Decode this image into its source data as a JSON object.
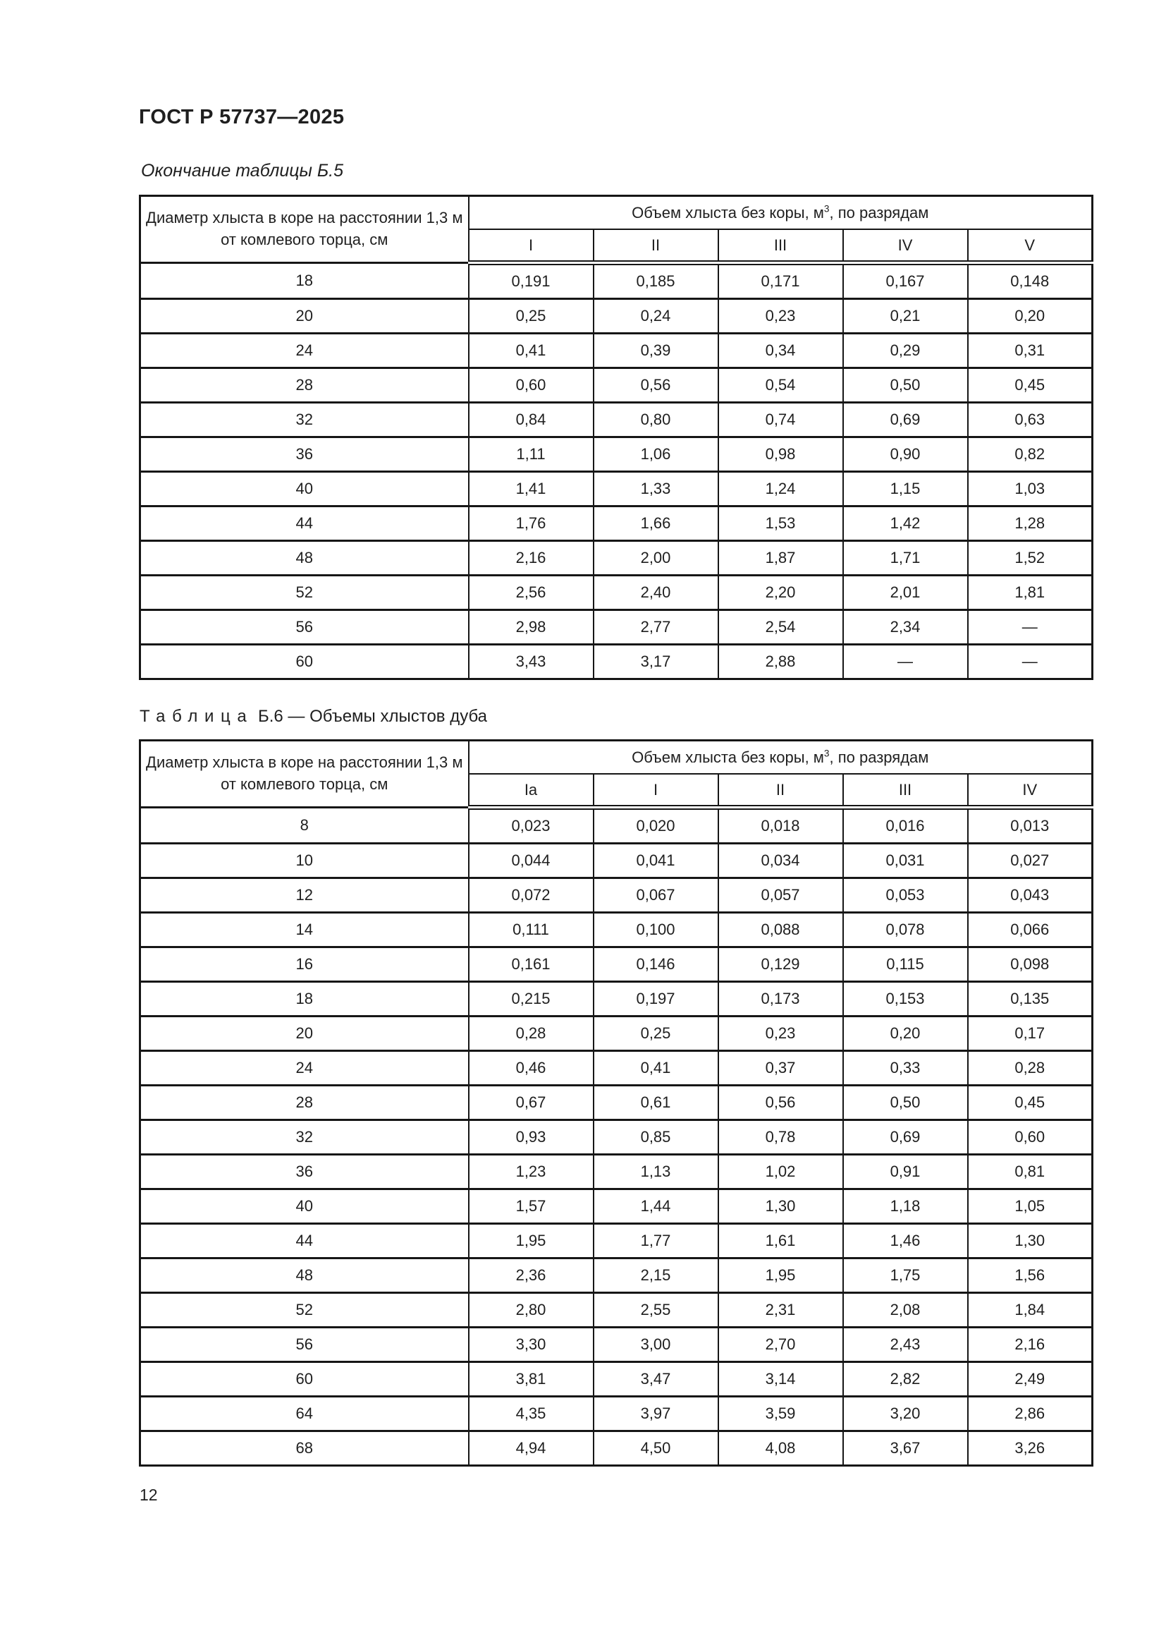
{
  "page": {
    "header_title": "ГОСТ Р 57737—2025",
    "page_number": "12"
  },
  "table_b5": {
    "caption": "Окончание таблицы Б.5",
    "diameter_header": "Диаметр хлыста в коре на расстоянии 1,3 м от комлевого торца, см",
    "volume_header": {
      "prefix": "Объем хлыста без коры, м",
      "sup": "3",
      "suffix": ", по разрядам"
    },
    "grades": [
      "I",
      "II",
      "III",
      "IV",
      "V"
    ],
    "rows": [
      [
        "18",
        "0,191",
        "0,185",
        "0,171",
        "0,167",
        "0,148"
      ],
      [
        "20",
        "0,25",
        "0,24",
        "0,23",
        "0,21",
        "0,20"
      ],
      [
        "24",
        "0,41",
        "0,39",
        "0,34",
        "0,29",
        "0,31"
      ],
      [
        "28",
        "0,60",
        "0,56",
        "0,54",
        "0,50",
        "0,45"
      ],
      [
        "32",
        "0,84",
        "0,80",
        "0,74",
        "0,69",
        "0,63"
      ],
      [
        "36",
        "1,11",
        "1,06",
        "0,98",
        "0,90",
        "0,82"
      ],
      [
        "40",
        "1,41",
        "1,33",
        "1,24",
        "1,15",
        "1,03"
      ],
      [
        "44",
        "1,76",
        "1,66",
        "1,53",
        "1,42",
        "1,28"
      ],
      [
        "48",
        "2,16",
        "2,00",
        "1,87",
        "1,71",
        "1,52"
      ],
      [
        "52",
        "2,56",
        "2,40",
        "2,20",
        "2,01",
        "1,81"
      ],
      [
        "56",
        "2,98",
        "2,77",
        "2,54",
        "2,34",
        "—"
      ],
      [
        "60",
        "3,43",
        "3,17",
        "2,88",
        "—",
        "—"
      ]
    ]
  },
  "table_b6": {
    "caption_label": "Таблица",
    "caption_rest": " Б.6 — Объемы хлыстов дуба",
    "diameter_header": "Диаметр хлыста в коре на расстоянии 1,3 м от комлевого торца, см",
    "volume_header": {
      "prefix": "Объем хлыста без коры, м",
      "sup": "3",
      "suffix": ", по разрядам"
    },
    "grades": [
      "Iа",
      "I",
      "II",
      "III",
      "IV"
    ],
    "rows": [
      [
        "8",
        "0,023",
        "0,020",
        "0,018",
        "0,016",
        "0,013"
      ],
      [
        "10",
        "0,044",
        "0,041",
        "0,034",
        "0,031",
        "0,027"
      ],
      [
        "12",
        "0,072",
        "0,067",
        "0,057",
        "0,053",
        "0,043"
      ],
      [
        "14",
        "0,111",
        "0,100",
        "0,088",
        "0,078",
        "0,066"
      ],
      [
        "16",
        "0,161",
        "0,146",
        "0,129",
        "0,115",
        "0,098"
      ],
      [
        "18",
        "0,215",
        "0,197",
        "0,173",
        "0,153",
        "0,135"
      ],
      [
        "20",
        "0,28",
        "0,25",
        "0,23",
        "0,20",
        "0,17"
      ],
      [
        "24",
        "0,46",
        "0,41",
        "0,37",
        "0,33",
        "0,28"
      ],
      [
        "28",
        "0,67",
        "0,61",
        "0,56",
        "0,50",
        "0,45"
      ],
      [
        "32",
        "0,93",
        "0,85",
        "0,78",
        "0,69",
        "0,60"
      ],
      [
        "36",
        "1,23",
        "1,13",
        "1,02",
        "0,91",
        "0,81"
      ],
      [
        "40",
        "1,57",
        "1,44",
        "1,30",
        "1,18",
        "1,05"
      ],
      [
        "44",
        "1,95",
        "1,77",
        "1,61",
        "1,46",
        "1,30"
      ],
      [
        "48",
        "2,36",
        "2,15",
        "1,95",
        "1,75",
        "1,56"
      ],
      [
        "52",
        "2,80",
        "2,55",
        "2,31",
        "2,08",
        "1,84"
      ],
      [
        "56",
        "3,30",
        "3,00",
        "2,70",
        "2,43",
        "2,16"
      ],
      [
        "60",
        "3,81",
        "3,47",
        "3,14",
        "2,82",
        "2,49"
      ],
      [
        "64",
        "4,35",
        "3,97",
        "3,59",
        "3,20",
        "2,86"
      ],
      [
        "68",
        "4,94",
        "4,50",
        "4,08",
        "3,67",
        "3,26"
      ]
    ]
  }
}
